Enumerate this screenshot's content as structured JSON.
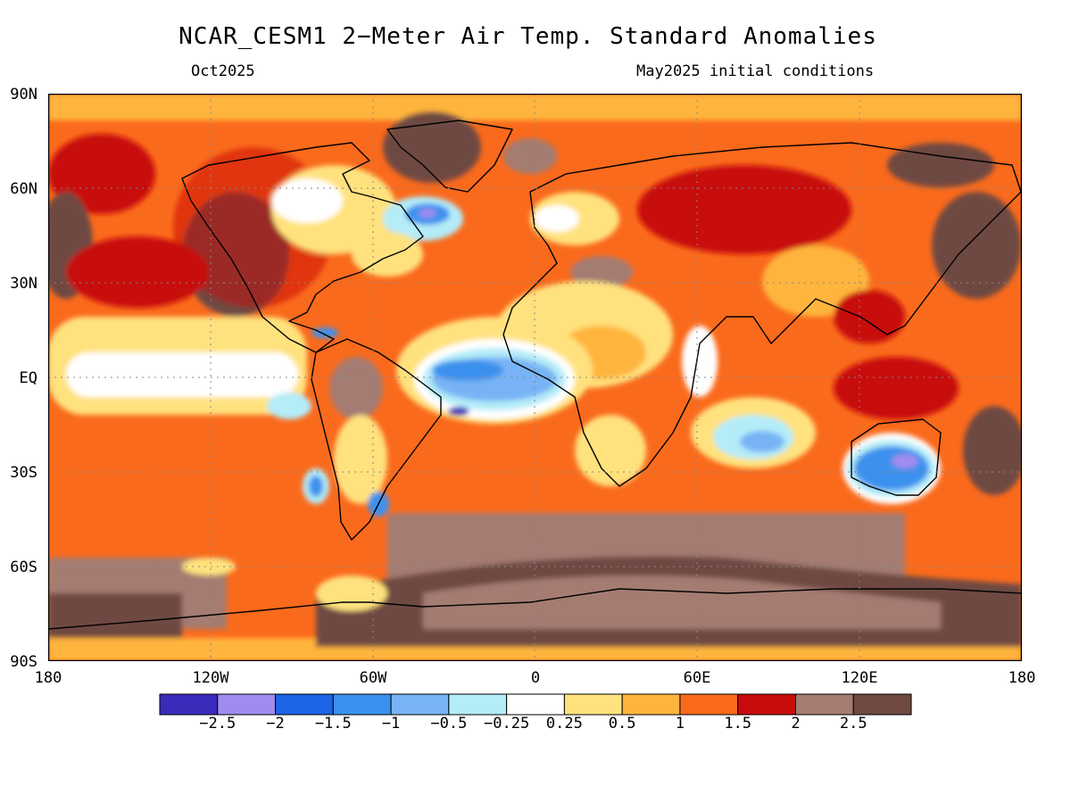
{
  "title": "NCAR_CESM1 2−Meter Air Temp. Standard Anomalies",
  "subtitle_left": "Oct2025",
  "subtitle_right": "May2025 initial conditions",
  "map": {
    "lat_labels": [
      "90N",
      "60N",
      "30N",
      "EQ",
      "30S",
      "60S",
      "90S"
    ],
    "lon_labels": [
      "180",
      "120W",
      "60W",
      "0",
      "60E",
      "120E",
      "180"
    ],
    "ocean_base_color": "#fa6a1c",
    "anomaly_regions": [
      {
        "region": "Greenland",
        "level": "2.5"
      },
      {
        "region": "Arctic Ocean",
        "level": "0.5"
      },
      {
        "region": "Central Canada",
        "level": "0.25"
      },
      {
        "region": "Hudson Bay",
        "level": "-1.5"
      },
      {
        "region": "Western North America",
        "level": "2.5"
      },
      {
        "region": "Equatorial East Pacific",
        "level": "0.25"
      },
      {
        "region": "Tropical Atlantic / Amazon",
        "level": "-1.5"
      },
      {
        "region": "Northern South America",
        "level": "2.5"
      },
      {
        "region": "Sahara / North Africa",
        "level": "0.5"
      },
      {
        "region": "Southern Ocean",
        "level": "2.5"
      },
      {
        "region": "East Antarctica",
        "level": "2.5"
      },
      {
        "region": "Australia",
        "level": "-1.5"
      },
      {
        "region": "South Indian Ocean",
        "level": "-0.5"
      },
      {
        "region": "North Pacific",
        "level": "2.5"
      },
      {
        "region": "Siberia",
        "level": "2"
      },
      {
        "region": "Maritime Continent",
        "level": "2"
      }
    ]
  },
  "colorbar": {
    "colors": [
      "#3a2bbb",
      "#a08bf0",
      "#1e64e6",
      "#3c91ee",
      "#78b4f5",
      "#b4ecf8",
      "#ffffff",
      "#ffe27e",
      "#ffb53c",
      "#fa6a1c",
      "#c80c0c",
      "#a47c72",
      "#6e4a42"
    ],
    "labels": [
      "−2.5",
      "−2",
      "−1.5",
      "−1",
      "−0.5",
      "−0.25",
      "0.25",
      "0.5",
      "1",
      "1.5",
      "2",
      "2.5"
    ]
  }
}
